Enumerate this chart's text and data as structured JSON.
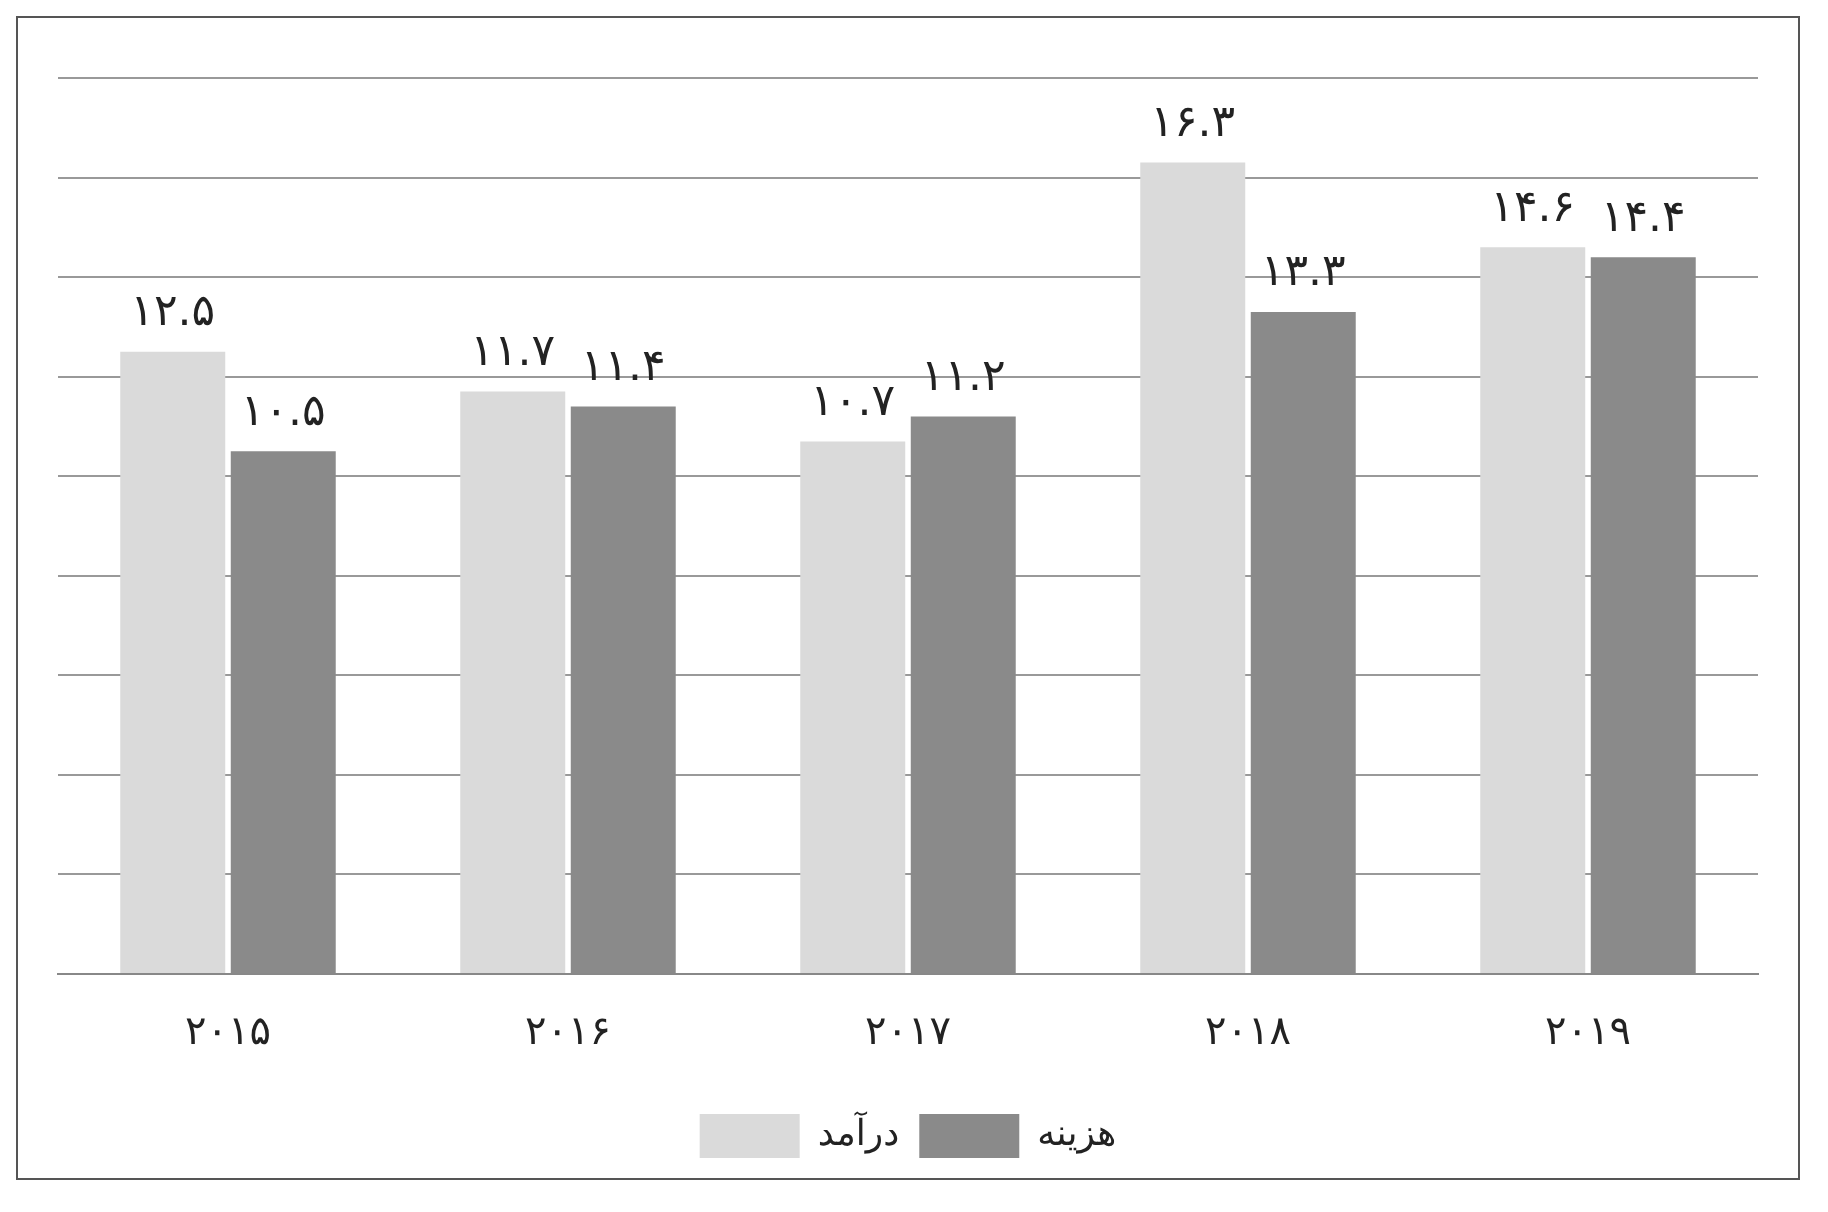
{
  "chart_data": {
    "type": "bar",
    "categories": [
      "۲۰۱۵",
      "۲۰۱۶",
      "۲۰۱۷",
      "۲۰۱۸",
      "۲۰۱۹"
    ],
    "series": [
      {
        "name": "درآمد",
        "color": "#dadada",
        "values": [
          12.5,
          11.7,
          10.7,
          16.3,
          14.6
        ],
        "value_labels": [
          "۱۲.۵",
          "۱۱.۷",
          "۱۰.۷",
          "۱۶.۳",
          "۱۴.۶"
        ]
      },
      {
        "name": "هزینه",
        "color": "#8a8a8a",
        "values": [
          10.5,
          11.4,
          11.2,
          13.3,
          14.4
        ],
        "value_labels": [
          "۱۰.۵",
          "۱۱.۴",
          "۱۱.۲",
          "۱۳.۳",
          "۱۴.۴"
        ]
      }
    ],
    "ylim": [
      0,
      18
    ],
    "yticks": [
      0,
      2,
      4,
      6,
      8,
      10,
      12,
      14,
      16,
      18
    ],
    "grid": "y",
    "tick_labels": "x",
    "legend": "bottom"
  }
}
